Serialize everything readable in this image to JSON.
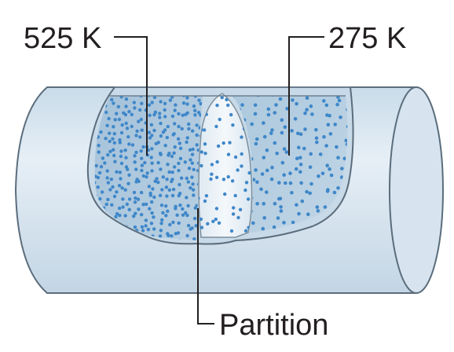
{
  "labels": {
    "left_temperature": "525 K",
    "right_temperature": "275 K",
    "partition": "Partition"
  },
  "colors": {
    "cylinder_fill": "#dce8f2",
    "cylinder_stroke": "#5b6d7c",
    "gas_hot_region": "#a9c5dc",
    "gas_cold_region": "#b9d0e2",
    "partition_fill": "#edf3f8",
    "molecule": "#3f87c9",
    "label_text": "#231f20"
  },
  "icons": {
    "molecule": "dot"
  }
}
